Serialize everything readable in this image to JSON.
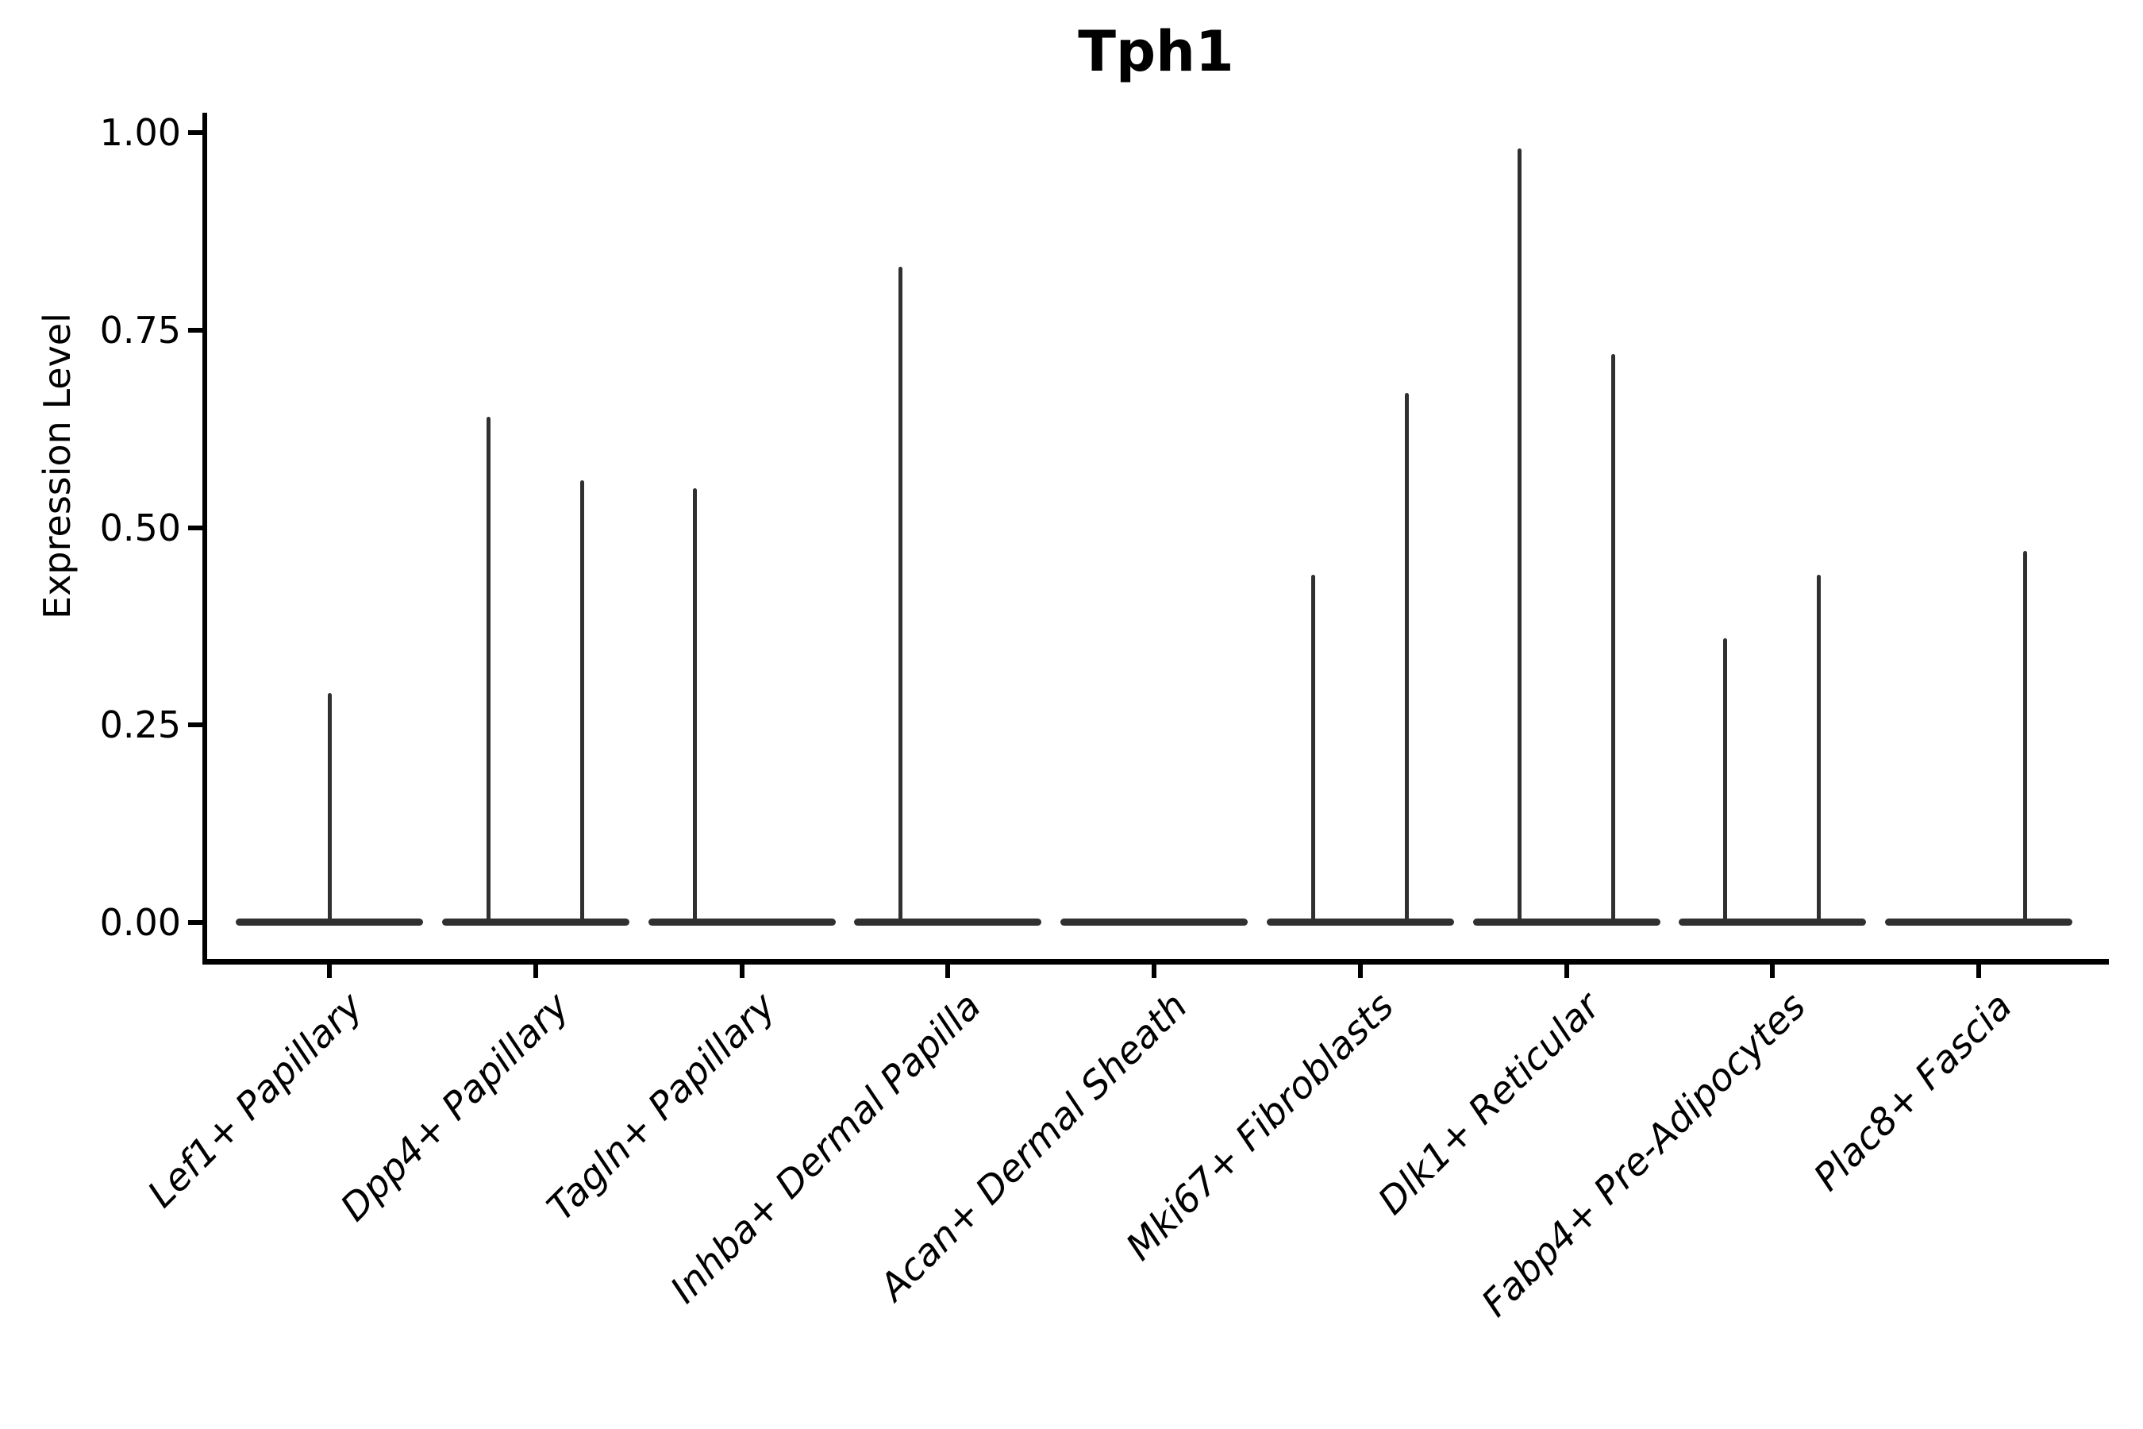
{
  "chart_data": {
    "type": "violin",
    "title": "Tph1",
    "ylabel": "Expression Level",
    "xlabel": "",
    "ylim": [
      0,
      1.0
    ],
    "grid": false,
    "legend": "none",
    "yticks": [
      {
        "value": 0.0,
        "label": "0.00"
      },
      {
        "value": 0.25,
        "label": "0.25"
      },
      {
        "value": 0.5,
        "label": "0.50"
      },
      {
        "value": 0.75,
        "label": "0.75"
      },
      {
        "value": 1.0,
        "label": "1.00"
      }
    ],
    "description": "Violin plot of Tph1 expression; most cells are zero so each violin collapses to a flat bar at 0 with thin spikes reaching the maximum expression of each sub-violin.",
    "categories": [
      {
        "label": "Lef1+ Papillary",
        "spikes": [
          {
            "pos": "center",
            "max": 0.29
          }
        ]
      },
      {
        "label": "Dpp4+ Papillary",
        "spikes": [
          {
            "pos": "left",
            "max": 0.64
          },
          {
            "pos": "right",
            "max": 0.56
          }
        ]
      },
      {
        "label": "Tagln+ Papillary",
        "spikes": [
          {
            "pos": "left",
            "max": 0.55
          }
        ]
      },
      {
        "label": "Inhba+ Dermal Papilla",
        "spikes": [
          {
            "pos": "left",
            "max": 0.83
          }
        ]
      },
      {
        "label": "Acan+ Dermal Sheath",
        "spikes": []
      },
      {
        "label": "Mki67+ Fibroblasts",
        "spikes": [
          {
            "pos": "left",
            "max": 0.44
          },
          {
            "pos": "right",
            "max": 0.67
          }
        ]
      },
      {
        "label": "Dlk1+ Reticular",
        "spikes": [
          {
            "pos": "left",
            "max": 0.98
          },
          {
            "pos": "right",
            "max": 0.72
          }
        ]
      },
      {
        "label": "Fabp4+ Pre-Adipocytes",
        "spikes": [
          {
            "pos": "left",
            "max": 0.36
          },
          {
            "pos": "right",
            "max": 0.44
          }
        ]
      },
      {
        "label": "Plac8+ Fascia",
        "spikes": [
          {
            "pos": "right",
            "max": 0.47
          }
        ]
      }
    ],
    "colors": {
      "violin": "#303030",
      "axis": "#000000",
      "text": "#000000",
      "background": "#ffffff"
    }
  }
}
